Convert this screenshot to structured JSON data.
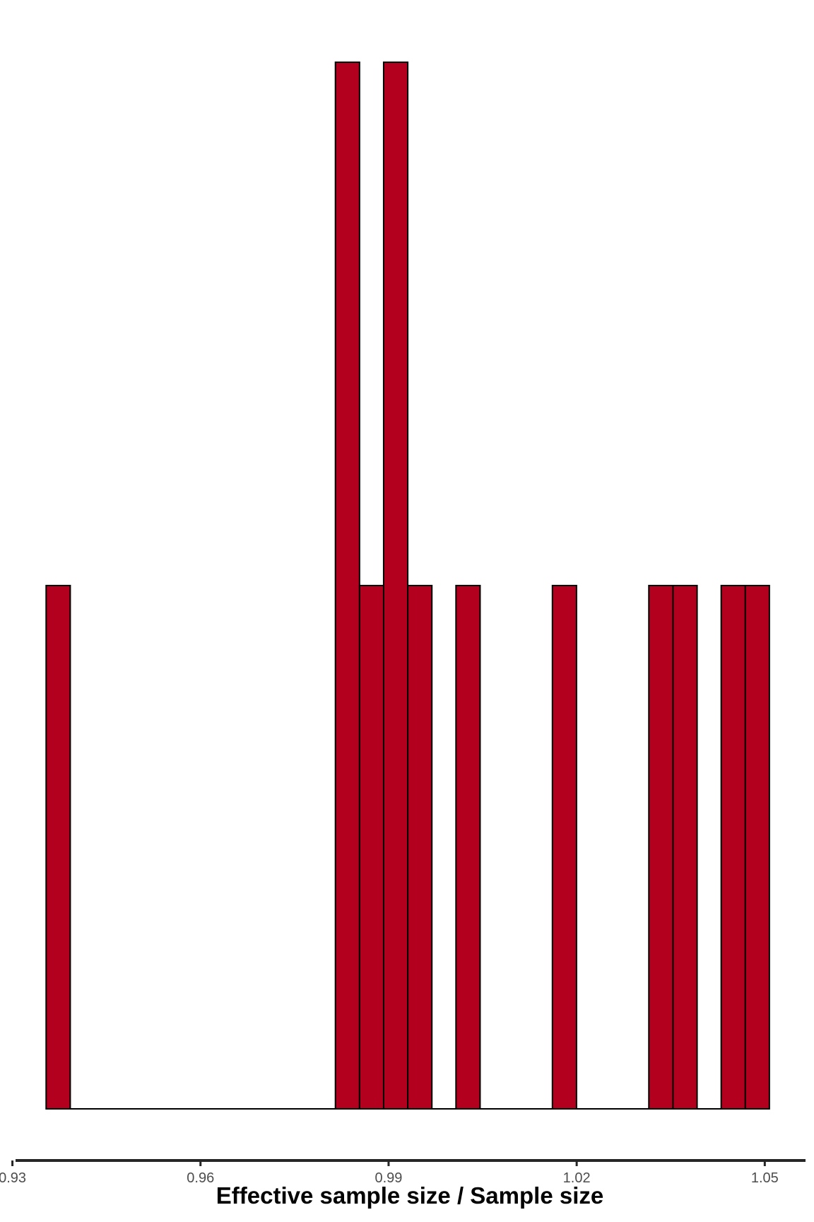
{
  "chart_data": {
    "type": "bar",
    "subtype": "histogram",
    "title": "",
    "xlabel": "Effective sample size / Sample size",
    "ylabel": "",
    "xlim": [
      0.9305,
      1.0565
    ],
    "ylim": [
      0,
      2
    ],
    "x_ticks": [
      0.93,
      0.96,
      0.99,
      1.02,
      1.05
    ],
    "x_tick_labels": [
      "0.93",
      "0.96",
      "0.99",
      "1.02",
      "1.05"
    ],
    "y_axis_visible": false,
    "grid": false,
    "legend": "none",
    "bin_width": 0.003845,
    "bins": [
      {
        "x0": 0.93538,
        "count": 1
      },
      {
        "x0": 0.98152,
        "count": 2
      },
      {
        "x0": 0.98537,
        "count": 1
      },
      {
        "x0": 0.98921,
        "count": 2
      },
      {
        "x0": 0.99306,
        "count": 1
      },
      {
        "x0": 1.00075,
        "count": 1
      },
      {
        "x0": 1.01613,
        "count": 1
      },
      {
        "x0": 1.03151,
        "count": 1
      },
      {
        "x0": 1.03536,
        "count": 1
      },
      {
        "x0": 1.04305,
        "count": 1
      },
      {
        "x0": 1.04689,
        "count": 1
      }
    ],
    "colors": {
      "bar_fill": "#b2001e",
      "bar_stroke": "#000000",
      "axis_line": "#262626",
      "tick_label": "#4d4d4d"
    }
  }
}
